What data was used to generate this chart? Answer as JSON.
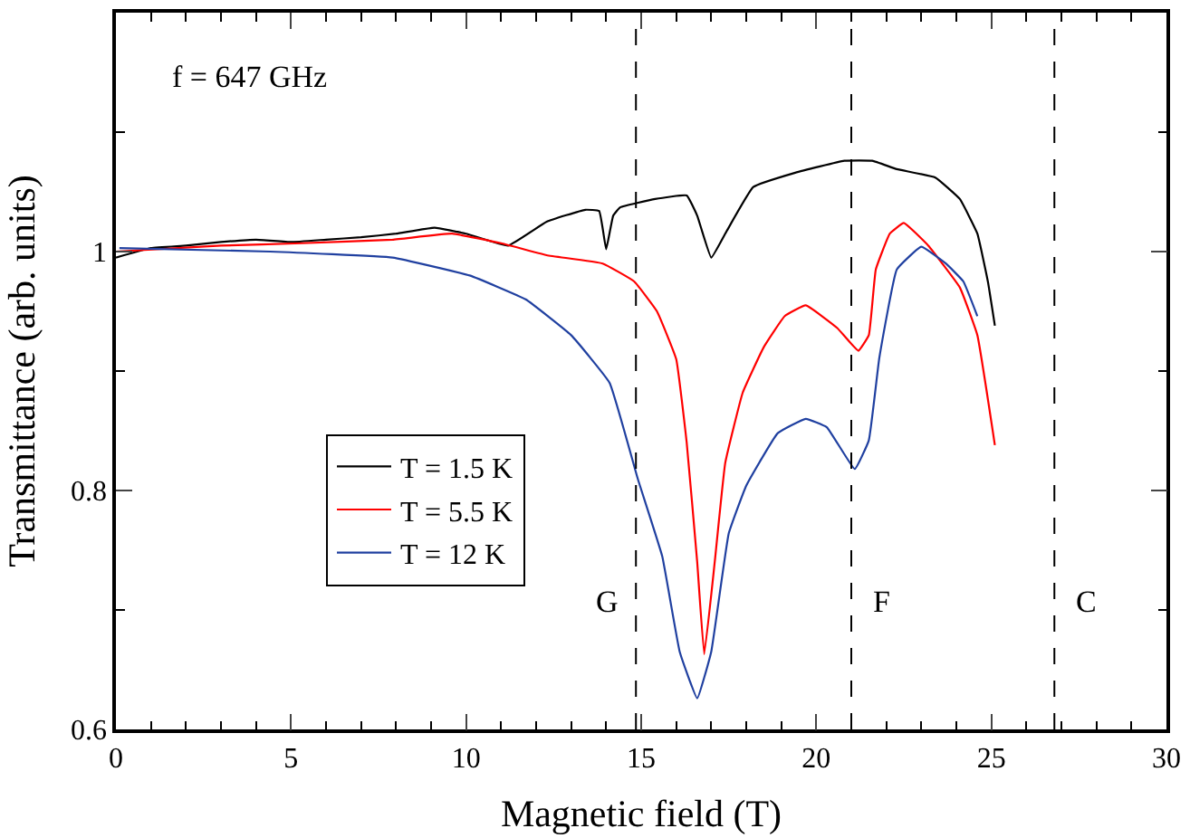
{
  "chart_data": {
    "type": "line",
    "xlabel": "Magnetic field (T)",
    "ylabel": "Transmittance (arb. units)",
    "xlim": [
      0,
      30
    ],
    "ylim": [
      0.6,
      1.2
    ],
    "xticks": [
      0,
      5,
      10,
      15,
      20,
      25,
      30,
      {
        "value": 1,
        "label": null
      },
      {
        "value": 2,
        "label": null
      },
      {
        "value": 3,
        "label": null
      },
      {
        "value": 4,
        "label": null
      },
      {
        "value": 6,
        "label": null
      },
      {
        "value": 7,
        "label": null
      },
      {
        "value": 8,
        "label": null
      },
      {
        "value": 9,
        "label": null
      },
      {
        "value": 11,
        "label": null
      },
      {
        "value": 12,
        "label": null
      },
      {
        "value": 13,
        "label": null
      },
      {
        "value": 14,
        "label": null
      },
      {
        "value": 16,
        "label": null
      },
      {
        "value": 17,
        "label": null
      },
      {
        "value": 18,
        "label": null
      },
      {
        "value": 19,
        "label": null
      },
      {
        "value": 21,
        "label": null
      },
      {
        "value": 22,
        "label": null
      },
      {
        "value": 23,
        "label": null
      },
      {
        "value": 24,
        "label": null
      },
      {
        "value": 26,
        "label": null
      },
      {
        "value": 27,
        "label": null
      },
      {
        "value": 28,
        "label": null
      },
      {
        "value": 29,
        "label": null
      }
    ],
    "yticks": [
      0.6,
      0.8,
      1,
      {
        "value": 0.7,
        "label": null
      },
      {
        "value": 0.9,
        "label": null
      },
      {
        "value": 1.1,
        "label": null
      }
    ],
    "legend": "bottom left",
    "marker": "none",
    "line_style": "solid",
    "annotations": [
      "f = 647 GHz"
    ],
    "ref_lines": [
      {
        "axis": "x",
        "value": 14.85,
        "label": "G",
        "color": "#000000",
        "line_style": "dashed"
      },
      {
        "axis": "x",
        "value": 21.0,
        "label": "F",
        "color": "#000000",
        "line_style": "dashed"
      },
      {
        "axis": "x",
        "value": 26.8,
        "label": "C",
        "color": "#000000",
        "line_style": "dashed"
      }
    ],
    "series": [
      {
        "name": "T = 1.5 K",
        "color": "#000000",
        "x": [
          0,
          1,
          2,
          3,
          4,
          5,
          6,
          7,
          8,
          9.1,
          10,
          11.2,
          12.3,
          13.4,
          13.8,
          14.0,
          14.2,
          14.4,
          15.4,
          16.3,
          16.6,
          17.0,
          17.4,
          18.2,
          19.4,
          20.8,
          21.6,
          22.3,
          23.4,
          24.1,
          24.6,
          24.9,
          25.1
        ],
        "values": [
          0.995,
          1.003,
          1.005,
          1.008,
          1.01,
          1.008,
          1.01,
          1.012,
          1.015,
          1.02,
          1.015,
          1.005,
          1.025,
          1.035,
          1.034,
          1.002,
          1.03,
          1.037,
          1.044,
          1.047,
          1.03,
          0.995,
          1.015,
          1.054,
          1.066,
          1.076,
          1.076,
          1.069,
          1.062,
          1.044,
          1.015,
          0.975,
          0.938
        ]
      },
      {
        "name": "T = 5.5 K",
        "color": "#ff0000",
        "x": [
          0,
          3,
          5.3,
          7.9,
          9.6,
          11.0,
          12.3,
          13.9,
          14.8,
          15.45,
          16.0,
          16.3,
          16.6,
          16.8,
          17.1,
          17.4,
          17.9,
          18.5,
          19.1,
          19.7,
          20.6,
          21.2,
          21.5,
          21.7,
          22.1,
          22.5,
          23.2,
          24.1,
          24.6,
          25.1
        ],
        "values": [
          1.0,
          1.005,
          1.007,
          1.01,
          1.015,
          1.007,
          0.997,
          0.99,
          0.975,
          0.95,
          0.91,
          0.84,
          0.74,
          0.663,
          0.74,
          0.823,
          0.882,
          0.92,
          0.946,
          0.955,
          0.936,
          0.917,
          0.93,
          0.985,
          1.015,
          1.024,
          1.005,
          0.97,
          0.93,
          0.838
        ]
      },
      {
        "name": "T = 12 K",
        "color": "#2040a0",
        "x": [
          0.1,
          4.4,
          7.9,
          10.1,
          11.7,
          13.0,
          14.1,
          14.9,
          15.6,
          16.1,
          16.6,
          17.0,
          17.5,
          18.0,
          18.9,
          19.7,
          20.3,
          21.1,
          21.5,
          21.8,
          22.3,
          23.0,
          23.7,
          24.2,
          24.6
        ],
        "values": [
          1.003,
          1.0,
          0.995,
          0.98,
          0.96,
          0.93,
          0.89,
          0.81,
          0.745,
          0.665,
          0.626,
          0.665,
          0.764,
          0.804,
          0.848,
          0.86,
          0.853,
          0.818,
          0.842,
          0.911,
          0.985,
          1.004,
          0.99,
          0.975,
          0.946
        ]
      }
    ]
  }
}
